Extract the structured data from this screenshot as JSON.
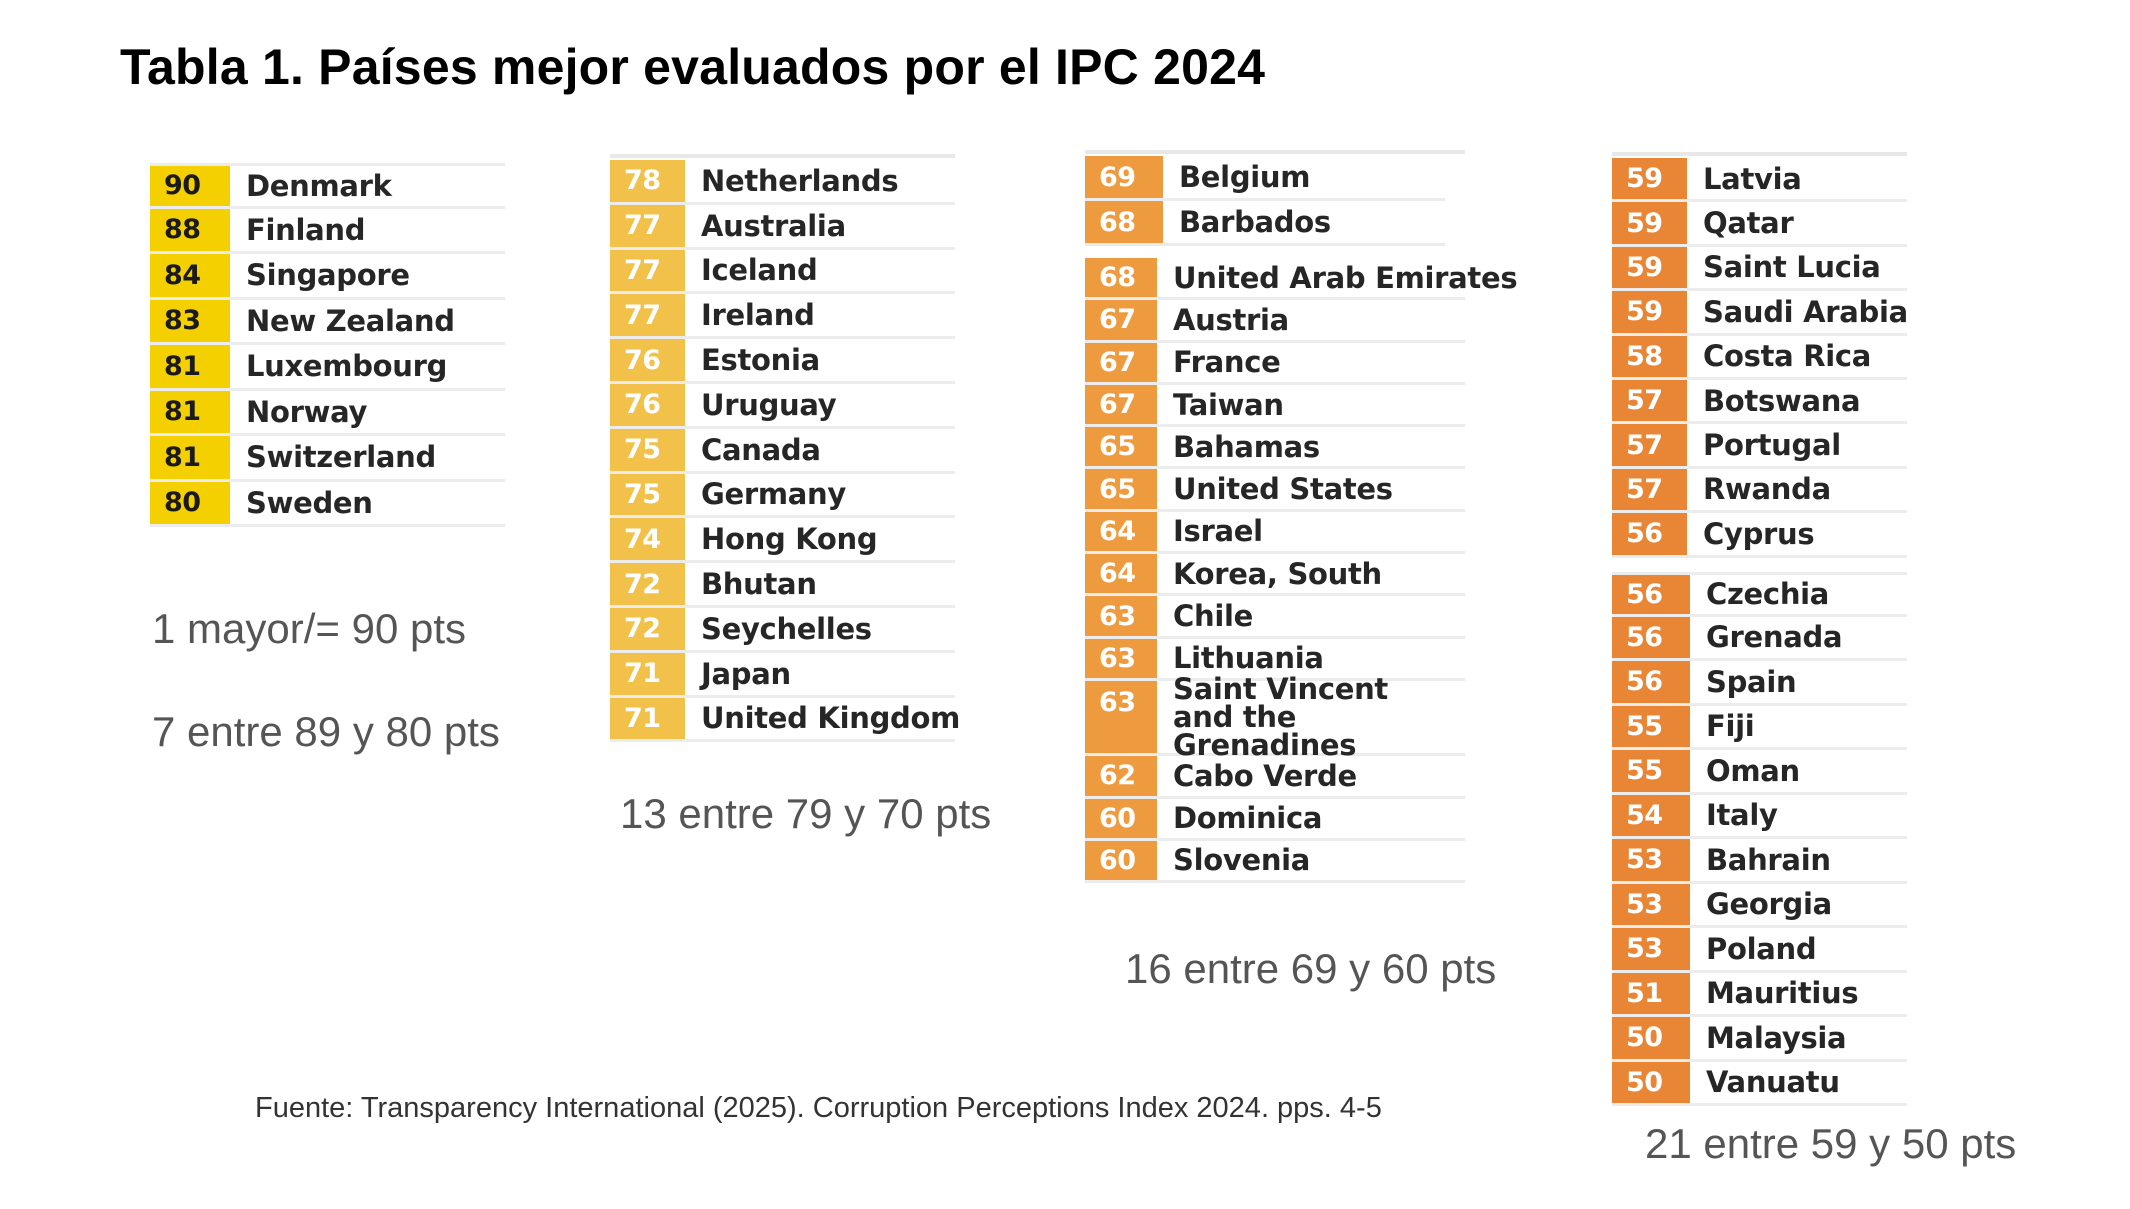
{
  "title": "Tabla 1. Países mejor evaluados por el IPC 2024",
  "colors": {
    "yellow": "#f5d000",
    "amber_light": "#f2c14a",
    "orange": "#ee9b3f",
    "orange_dark": "#e88636"
  },
  "groups": [
    {
      "caption_lines": [
        "1 mayor/= 90 pts",
        "7 entre 89 y 80 pts"
      ],
      "rows": [
        {
          "score": "90",
          "country": "Denmark"
        },
        {
          "score": "88",
          "country": "Finland"
        },
        {
          "score": "84",
          "country": "Singapore"
        },
        {
          "score": "83",
          "country": "New Zealand"
        },
        {
          "score": "81",
          "country": "Luxembourg"
        },
        {
          "score": "81",
          "country": "Norway"
        },
        {
          "score": "81",
          "country": "Switzerland"
        },
        {
          "score": "80",
          "country": "Sweden"
        }
      ]
    },
    {
      "caption_lines": [
        "13 entre 79 y 70 pts"
      ],
      "rows": [
        {
          "score": "78",
          "country": "Netherlands"
        },
        {
          "score": "77",
          "country": "Australia"
        },
        {
          "score": "77",
          "country": "Iceland"
        },
        {
          "score": "77",
          "country": "Ireland"
        },
        {
          "score": "76",
          "country": "Estonia"
        },
        {
          "score": "76",
          "country": "Uruguay"
        },
        {
          "score": "75",
          "country": "Canada"
        },
        {
          "score": "75",
          "country": "Germany"
        },
        {
          "score": "74",
          "country": "Hong Kong"
        },
        {
          "score": "72",
          "country": "Bhutan"
        },
        {
          "score": "72",
          "country": "Seychelles"
        },
        {
          "score": "71",
          "country": "Japan"
        },
        {
          "score": "71",
          "country": "United Kingdom"
        }
      ]
    },
    {
      "caption_lines": [
        "16 entre 69 y 60 pts"
      ],
      "rows_a": [
        {
          "score": "69",
          "country": "Belgium"
        },
        {
          "score": "68",
          "country": "Barbados"
        }
      ],
      "rows_b": [
        {
          "score": "68",
          "country": "United Arab Emirates"
        },
        {
          "score": "67",
          "country": "Austria"
        },
        {
          "score": "67",
          "country": "France"
        },
        {
          "score": "67",
          "country": "Taiwan"
        },
        {
          "score": "65",
          "country": "Bahamas"
        },
        {
          "score": "65",
          "country": "United States"
        },
        {
          "score": "64",
          "country": "Israel"
        },
        {
          "score": "64",
          "country": "Korea, South"
        },
        {
          "score": "63",
          "country": "Chile"
        },
        {
          "score": "63",
          "country": "Lithuania"
        },
        {
          "score": "63",
          "country": "Saint Vincent and the Grenadines"
        },
        {
          "score": "62",
          "country": "Cabo Verde"
        },
        {
          "score": "60",
          "country": "Dominica"
        },
        {
          "score": "60",
          "country": "Slovenia"
        }
      ]
    },
    {
      "caption_lines": [
        "21 entre 59 y 50 pts"
      ],
      "rows_a": [
        {
          "score": "59",
          "country": "Latvia"
        },
        {
          "score": "59",
          "country": "Qatar"
        },
        {
          "score": "59",
          "country": "Saint Lucia"
        },
        {
          "score": "59",
          "country": "Saudi Arabia"
        },
        {
          "score": "58",
          "country": "Costa Rica"
        },
        {
          "score": "57",
          "country": "Botswana"
        },
        {
          "score": "57",
          "country": "Portugal"
        },
        {
          "score": "57",
          "country": "Rwanda"
        },
        {
          "score": "56",
          "country": "Cyprus"
        }
      ],
      "rows_b": [
        {
          "score": "56",
          "country": "Czechia"
        },
        {
          "score": "56",
          "country": "Grenada"
        },
        {
          "score": "56",
          "country": "Spain"
        },
        {
          "score": "55",
          "country": "Fiji"
        },
        {
          "score": "55",
          "country": "Oman"
        },
        {
          "score": "54",
          "country": "Italy"
        },
        {
          "score": "53",
          "country": "Bahrain"
        },
        {
          "score": "53",
          "country": "Georgia"
        },
        {
          "score": "53",
          "country": "Poland"
        },
        {
          "score": "51",
          "country": "Mauritius"
        },
        {
          "score": "50",
          "country": "Malaysia"
        },
        {
          "score": "50",
          "country": "Vanuatu"
        }
      ]
    }
  ],
  "source": "Fuente: Transparency International (2025). Corruption Perceptions Index 2024. pps. 4-5"
}
